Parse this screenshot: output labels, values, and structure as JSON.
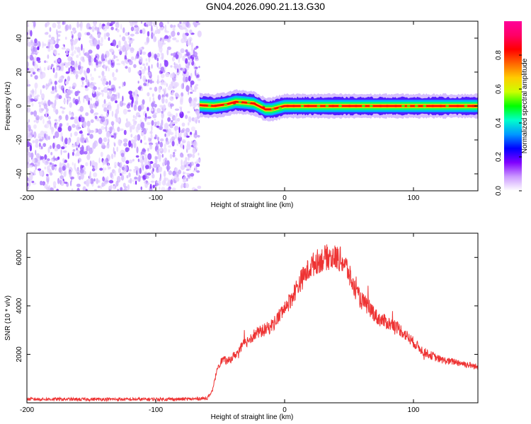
{
  "figure": {
    "title": "GN04.2026.090.21.13.G30"
  },
  "chart_data": [
    {
      "type": "heatmap",
      "title": "GN04.2026.090.21.13.G30",
      "xlabel": "Height of straight line (km)",
      "ylabel": "Frequency (Hz)",
      "xlim": [
        -200,
        150
      ],
      "ylim": [
        -50,
        50
      ],
      "x_ticks": [
        -200,
        -100,
        0,
        100
      ],
      "x_tick_labels": [
        "-200",
        "-100",
        "0",
        "100"
      ],
      "y_ticks": [
        -40,
        -20,
        0,
        20,
        40
      ],
      "y_tick_labels": [
        "-40",
        "-20",
        "0",
        "20",
        "40"
      ],
      "noise_region_x": [
        -200,
        -66
      ],
      "signal_track": [
        {
          "x": -66,
          "y": 0.5
        },
        {
          "x": -55,
          "y": 0
        },
        {
          "x": -45,
          "y": 1
        },
        {
          "x": -38,
          "y": 2.5
        },
        {
          "x": -30,
          "y": 2
        },
        {
          "x": -24,
          "y": 1.5
        },
        {
          "x": -20,
          "y": 0
        },
        {
          "x": -15,
          "y": -2
        },
        {
          "x": -10,
          "y": -2
        },
        {
          "x": -5,
          "y": -1
        },
        {
          "x": 0,
          "y": 0
        },
        {
          "x": 20,
          "y": 0
        },
        {
          "x": 60,
          "y": 0
        },
        {
          "x": 100,
          "y": 0
        },
        {
          "x": 150,
          "y": 0
        }
      ],
      "colorbar": {
        "label": "Normalized spectral amplitude",
        "range": [
          0.0,
          1.0
        ],
        "ticks": [
          0.0,
          0.2,
          0.4,
          0.6,
          0.8
        ],
        "tick_labels": [
          "0.0",
          "0.2",
          "0.4",
          "0.6",
          "0.8"
        ],
        "colors": [
          "#ffffff",
          "#cc99ff",
          "#8000ff",
          "#0000ff",
          "#0099ff",
          "#00ffcc",
          "#00ff00",
          "#ccff00",
          "#ffcc00",
          "#ff6600",
          "#ff0000",
          "#ff0066",
          "#ff0099"
        ]
      }
    },
    {
      "type": "line",
      "xlabel": "Height of straight line (km)",
      "ylabel": "SNR (10 * v/v)",
      "xlim": [
        -200,
        150
      ],
      "ylim": [
        0,
        7000
      ],
      "x_ticks": [
        -200,
        -100,
        0,
        100
      ],
      "x_tick_labels": [
        "-200",
        "-100",
        "0",
        "100"
      ],
      "y_ticks": [
        2000,
        4000,
        6000
      ],
      "y_tick_labels": [
        "2000",
        "4000",
        "6000"
      ],
      "line_color": "#ee3333",
      "series": [
        {
          "name": "SNR",
          "x": [
            -200,
            -180,
            -160,
            -140,
            -120,
            -100,
            -80,
            -70,
            -60,
            -56,
            -52,
            -48,
            -44,
            -40,
            -36,
            -32,
            -28,
            -24,
            -20,
            -16,
            -12,
            -8,
            -4,
            0,
            4,
            8,
            12,
            16,
            20,
            24,
            28,
            32,
            36,
            40,
            44,
            48,
            52,
            56,
            60,
            64,
            68,
            72,
            76,
            80,
            84,
            88,
            92,
            96,
            100,
            104,
            108,
            112,
            116,
            120,
            124,
            128,
            132,
            136,
            140,
            144,
            148,
            150
          ],
          "y": [
            150,
            150,
            140,
            150,
            140,
            150,
            150,
            160,
            200,
            500,
            1500,
            1800,
            1700,
            1900,
            2100,
            2400,
            2600,
            2800,
            2900,
            3000,
            3100,
            3300,
            3600,
            3900,
            4200,
            4600,
            5000,
            5300,
            5600,
            5800,
            5900,
            6000,
            6000,
            6000,
            5900,
            5600,
            5000,
            4500,
            4200,
            4000,
            3800,
            3500,
            3400,
            3300,
            3200,
            3100,
            2900,
            2700,
            2500,
            2300,
            2100,
            2000,
            1900,
            1800,
            1750,
            1700,
            1700,
            1650,
            1600,
            1550,
            1500,
            1450
          ]
        }
      ]
    }
  ]
}
